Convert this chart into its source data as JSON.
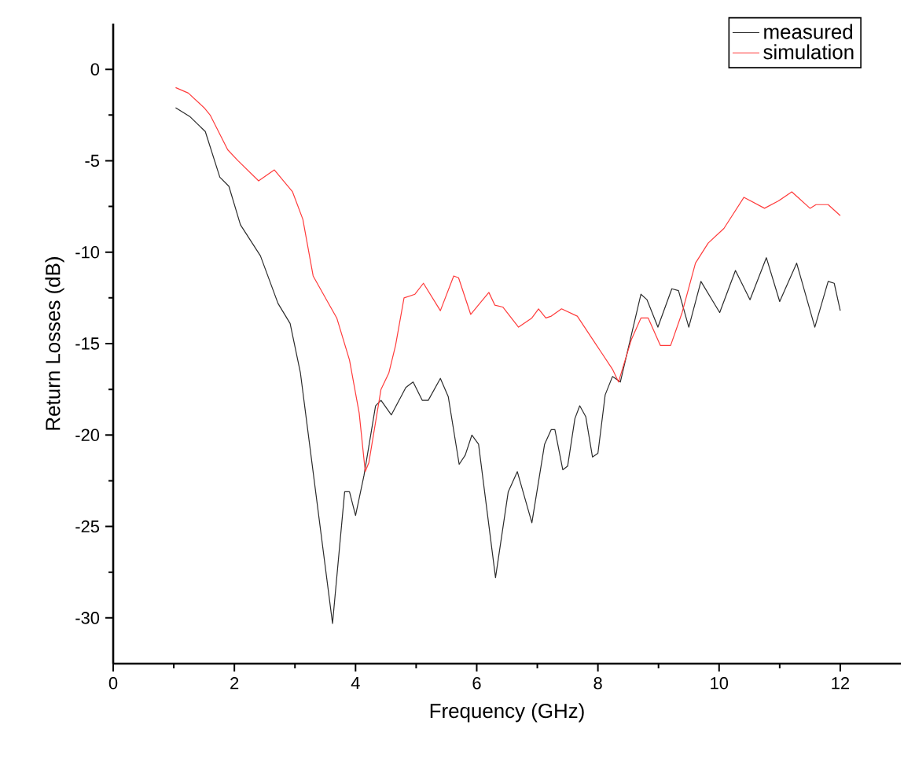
{
  "chart_data": {
    "type": "line",
    "xlabel": "Frequency (GHz)",
    "ylabel": "Return Losses (dB)",
    "xlim": [
      0,
      13
    ],
    "ylim": [
      -32.5,
      2.5
    ],
    "xticks": [
      0,
      2,
      4,
      6,
      8,
      10,
      12
    ],
    "yticks": [
      0,
      -5,
      -10,
      -15,
      -20,
      -25,
      -30
    ],
    "legend": "top right",
    "grid": false,
    "marker": "none",
    "line_style": "solid",
    "series": [
      {
        "name": "measured",
        "color": "#2b2b2b",
        "x": [
          1.03,
          1.27,
          1.52,
          1.76,
          1.91,
          2.1,
          2.43,
          2.72,
          2.92,
          3.09,
          3.62,
          3.82,
          3.9,
          4.0,
          4.14,
          4.33,
          4.42,
          4.59,
          4.83,
          4.95,
          5.1,
          5.2,
          5.4,
          5.53,
          5.71,
          5.81,
          5.92,
          6.03,
          6.31,
          6.52,
          6.67,
          6.91,
          7.12,
          7.23,
          7.29,
          7.42,
          7.5,
          7.62,
          7.7,
          7.8,
          7.91,
          8.0,
          8.12,
          8.24,
          8.37,
          8.71,
          8.81,
          8.99,
          9.22,
          9.33,
          9.5,
          9.7,
          10.01,
          10.27,
          10.51,
          10.78,
          11.0,
          11.28,
          11.58,
          11.8,
          11.9,
          12.0
        ],
        "values": [
          -2.1,
          -2.6,
          -3.4,
          -5.9,
          -6.4,
          -8.5,
          -10.2,
          -12.8,
          -13.9,
          -16.6,
          -30.3,
          -23.1,
          -23.1,
          -24.4,
          -22.2,
          -18.4,
          -18.1,
          -18.9,
          -17.4,
          -17.1,
          -18.1,
          -18.1,
          -16.9,
          -17.9,
          -21.6,
          -21.1,
          -20.0,
          -20.5,
          -27.8,
          -23.1,
          -22.0,
          -24.8,
          -20.5,
          -19.7,
          -19.7,
          -21.9,
          -21.7,
          -19.1,
          -18.4,
          -19.0,
          -21.2,
          -21.0,
          -17.8,
          -16.8,
          -17.1,
          -12.3,
          -12.6,
          -14.1,
          -12.0,
          -12.1,
          -14.1,
          -11.6,
          -13.3,
          -11.0,
          -12.6,
          -10.3,
          -12.7,
          -10.6,
          -14.1,
          -11.6,
          -11.7,
          -13.2
        ]
      },
      {
        "name": "simulation",
        "color": "#ff3b3b",
        "x": [
          1.03,
          1.24,
          1.5,
          1.6,
          1.89,
          2.06,
          2.4,
          2.66,
          2.96,
          3.13,
          3.3,
          3.52,
          3.69,
          3.9,
          4.06,
          4.16,
          4.22,
          4.42,
          4.55,
          4.66,
          4.8,
          4.98,
          5.12,
          5.4,
          5.62,
          5.7,
          5.9,
          6.2,
          6.3,
          6.43,
          6.69,
          6.91,
          7.02,
          7.14,
          7.23,
          7.4,
          7.66,
          7.98,
          8.24,
          8.34,
          8.55,
          8.71,
          8.83,
          9.03,
          9.2,
          9.39,
          9.61,
          9.82,
          10.08,
          10.41,
          10.75,
          10.98,
          11.2,
          11.5,
          11.6,
          11.8,
          12.0
        ],
        "values": [
          -1.0,
          -1.3,
          -2.1,
          -2.5,
          -4.4,
          -5.0,
          -6.1,
          -5.5,
          -6.7,
          -8.2,
          -11.3,
          -12.6,
          -13.6,
          -15.9,
          -18.8,
          -22.0,
          -21.5,
          -17.5,
          -16.6,
          -15.1,
          -12.5,
          -12.3,
          -11.7,
          -13.2,
          -11.3,
          -11.4,
          -13.4,
          -12.2,
          -12.9,
          -13.0,
          -14.1,
          -13.6,
          -13.1,
          -13.6,
          -13.5,
          -13.1,
          -13.5,
          -15.1,
          -16.4,
          -17.1,
          -14.8,
          -13.6,
          -13.6,
          -15.1,
          -15.1,
          -13.3,
          -10.6,
          -9.5,
          -8.7,
          -7.0,
          -7.6,
          -7.2,
          -6.7,
          -7.6,
          -7.4,
          -7.4,
          -8.0
        ]
      }
    ]
  }
}
